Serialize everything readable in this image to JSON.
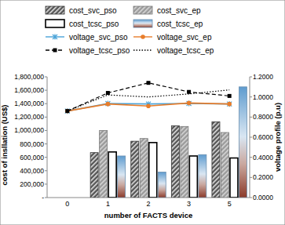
{
  "chart_data": {
    "type": "bar",
    "x_label": "number of FACTS device",
    "y_label": "cost of insllation (US$)",
    "y2_label": "voltage profile (p.u)",
    "categories": [
      "0",
      "1",
      "2",
      "3",
      "5"
    ],
    "ylim": [
      0,
      1800000
    ],
    "yticks": [
      {
        "value": 0,
        "label": "-"
      },
      {
        "value": 200000,
        "label": "200,000"
      },
      {
        "value": 400000,
        "label": "400,000"
      },
      {
        "value": 600000,
        "label": "600,000"
      },
      {
        "value": 800000,
        "label": "800,000"
      },
      {
        "value": 1000000,
        "label": "1,000,000"
      },
      {
        "value": 1200000,
        "label": "1,200,000"
      },
      {
        "value": 1400000,
        "label": "1,400,000"
      },
      {
        "value": 1600000,
        "label": "1,600,000"
      },
      {
        "value": 1800000,
        "label": "1,800,000"
      }
    ],
    "y2lim": [
      0,
      1.2
    ],
    "y2ticks": [
      {
        "value": 0,
        "label": "0.0000"
      },
      {
        "value": 0.2,
        "label": "0.2000"
      },
      {
        "value": 0.4,
        "label": "0.4000"
      },
      {
        "value": 0.6,
        "label": "0.6000"
      },
      {
        "value": 0.8,
        "label": "0.8000"
      },
      {
        "value": 1.0,
        "label": "1.0000"
      },
      {
        "value": 1.2,
        "label": "1.2000"
      }
    ],
    "grid": false,
    "legend": "top",
    "series": [
      {
        "name": "cost_svc_pso",
        "type": "bar",
        "color": "#555555",
        "values": [
          null,
          670000,
          840000,
          1070000,
          1130000
        ]
      },
      {
        "name": "cost_svc_ep",
        "type": "bar",
        "color": "#9a9a9a",
        "values": [
          null,
          1000000,
          880000,
          1060000,
          970000
        ]
      },
      {
        "name": "cost_tcsc_pso",
        "type": "bar",
        "color": "#ffffff",
        "values": [
          null,
          680000,
          820000,
          620000,
          590000
        ]
      },
      {
        "name": "cost_tcsc_ep",
        "type": "bar",
        "color": "#8b3a2a",
        "values": [
          null,
          620000,
          380000,
          640000,
          1650000
        ]
      },
      {
        "name": "voltage_svc_pso",
        "type": "line",
        "axis": "y2",
        "color": "#4aa3d8",
        "marker": "x",
        "line_style": "solid",
        "values": [
          0.86,
          0.935,
          0.93,
          0.935,
          0.93
        ]
      },
      {
        "name": "voltage_svc_ep",
        "type": "line",
        "axis": "y2",
        "color": "#e87d2b",
        "marker": "circle",
        "line_style": "solid",
        "values": [
          0.86,
          0.93,
          0.91,
          0.94,
          0.93
        ]
      },
      {
        "name": "voltage_tcsc_pso",
        "type": "line",
        "axis": "y2",
        "color": "#000000",
        "marker": "square",
        "line_style": "dashed",
        "values": [
          0.86,
          1.04,
          1.14,
          1.05,
          1.01
        ]
      },
      {
        "name": "voltage_tcsc_ep",
        "type": "line",
        "axis": "y2",
        "color": "#000000",
        "marker": "none",
        "line_style": "dotted",
        "values": [
          0.86,
          1.02,
          1.0,
          1.03,
          1.07
        ]
      }
    ]
  }
}
